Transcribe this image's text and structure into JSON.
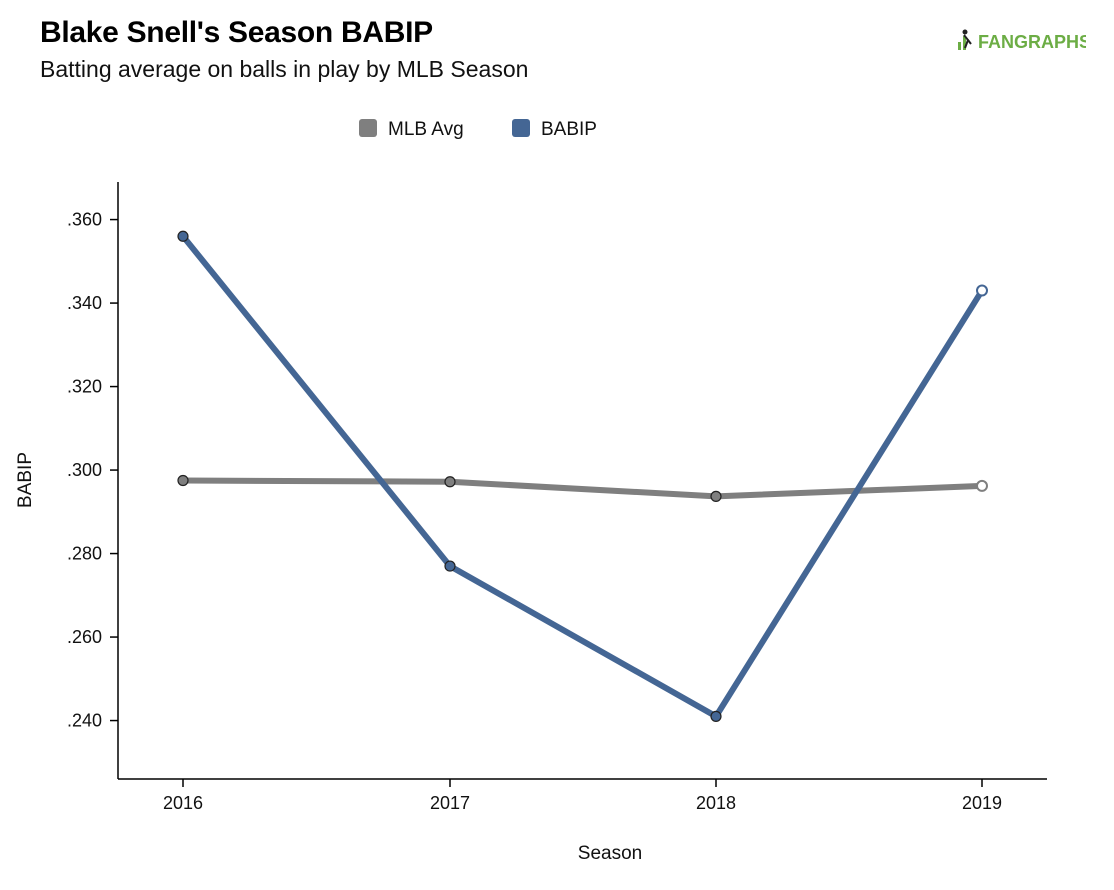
{
  "title": "Blake Snell's Season BABIP",
  "subtitle": "Batting average on balls in play by MLB Season",
  "logo_text": "FANGRAPHS",
  "colors": {
    "mlb": "#7f7f7f",
    "babip": "#446694",
    "logo": "#6cad45"
  },
  "chart_data": {
    "type": "line",
    "title": "Blake Snell's Season BABIP",
    "subtitle": "Batting average on balls in play by MLB Season",
    "xlabel": "Season",
    "ylabel": "BABIP",
    "x": [
      "2016",
      "2017",
      "2018",
      "2019"
    ],
    "yticks": [
      ".240",
      ".260",
      ".280",
      ".300",
      ".320",
      ".340",
      ".360"
    ],
    "ylim": [
      0.226,
      0.369
    ],
    "legend": "top-center",
    "grid": false,
    "series": [
      {
        "name": "MLB Avg",
        "color": "#7f7f7f",
        "values": [
          0.2975,
          0.2972,
          0.2937,
          0.2962
        ],
        "last_point_hollow": true
      },
      {
        "name": "BABIP",
        "color": "#446694",
        "values": [
          0.356,
          0.277,
          0.241,
          0.343
        ],
        "last_point_hollow": true
      }
    ]
  }
}
